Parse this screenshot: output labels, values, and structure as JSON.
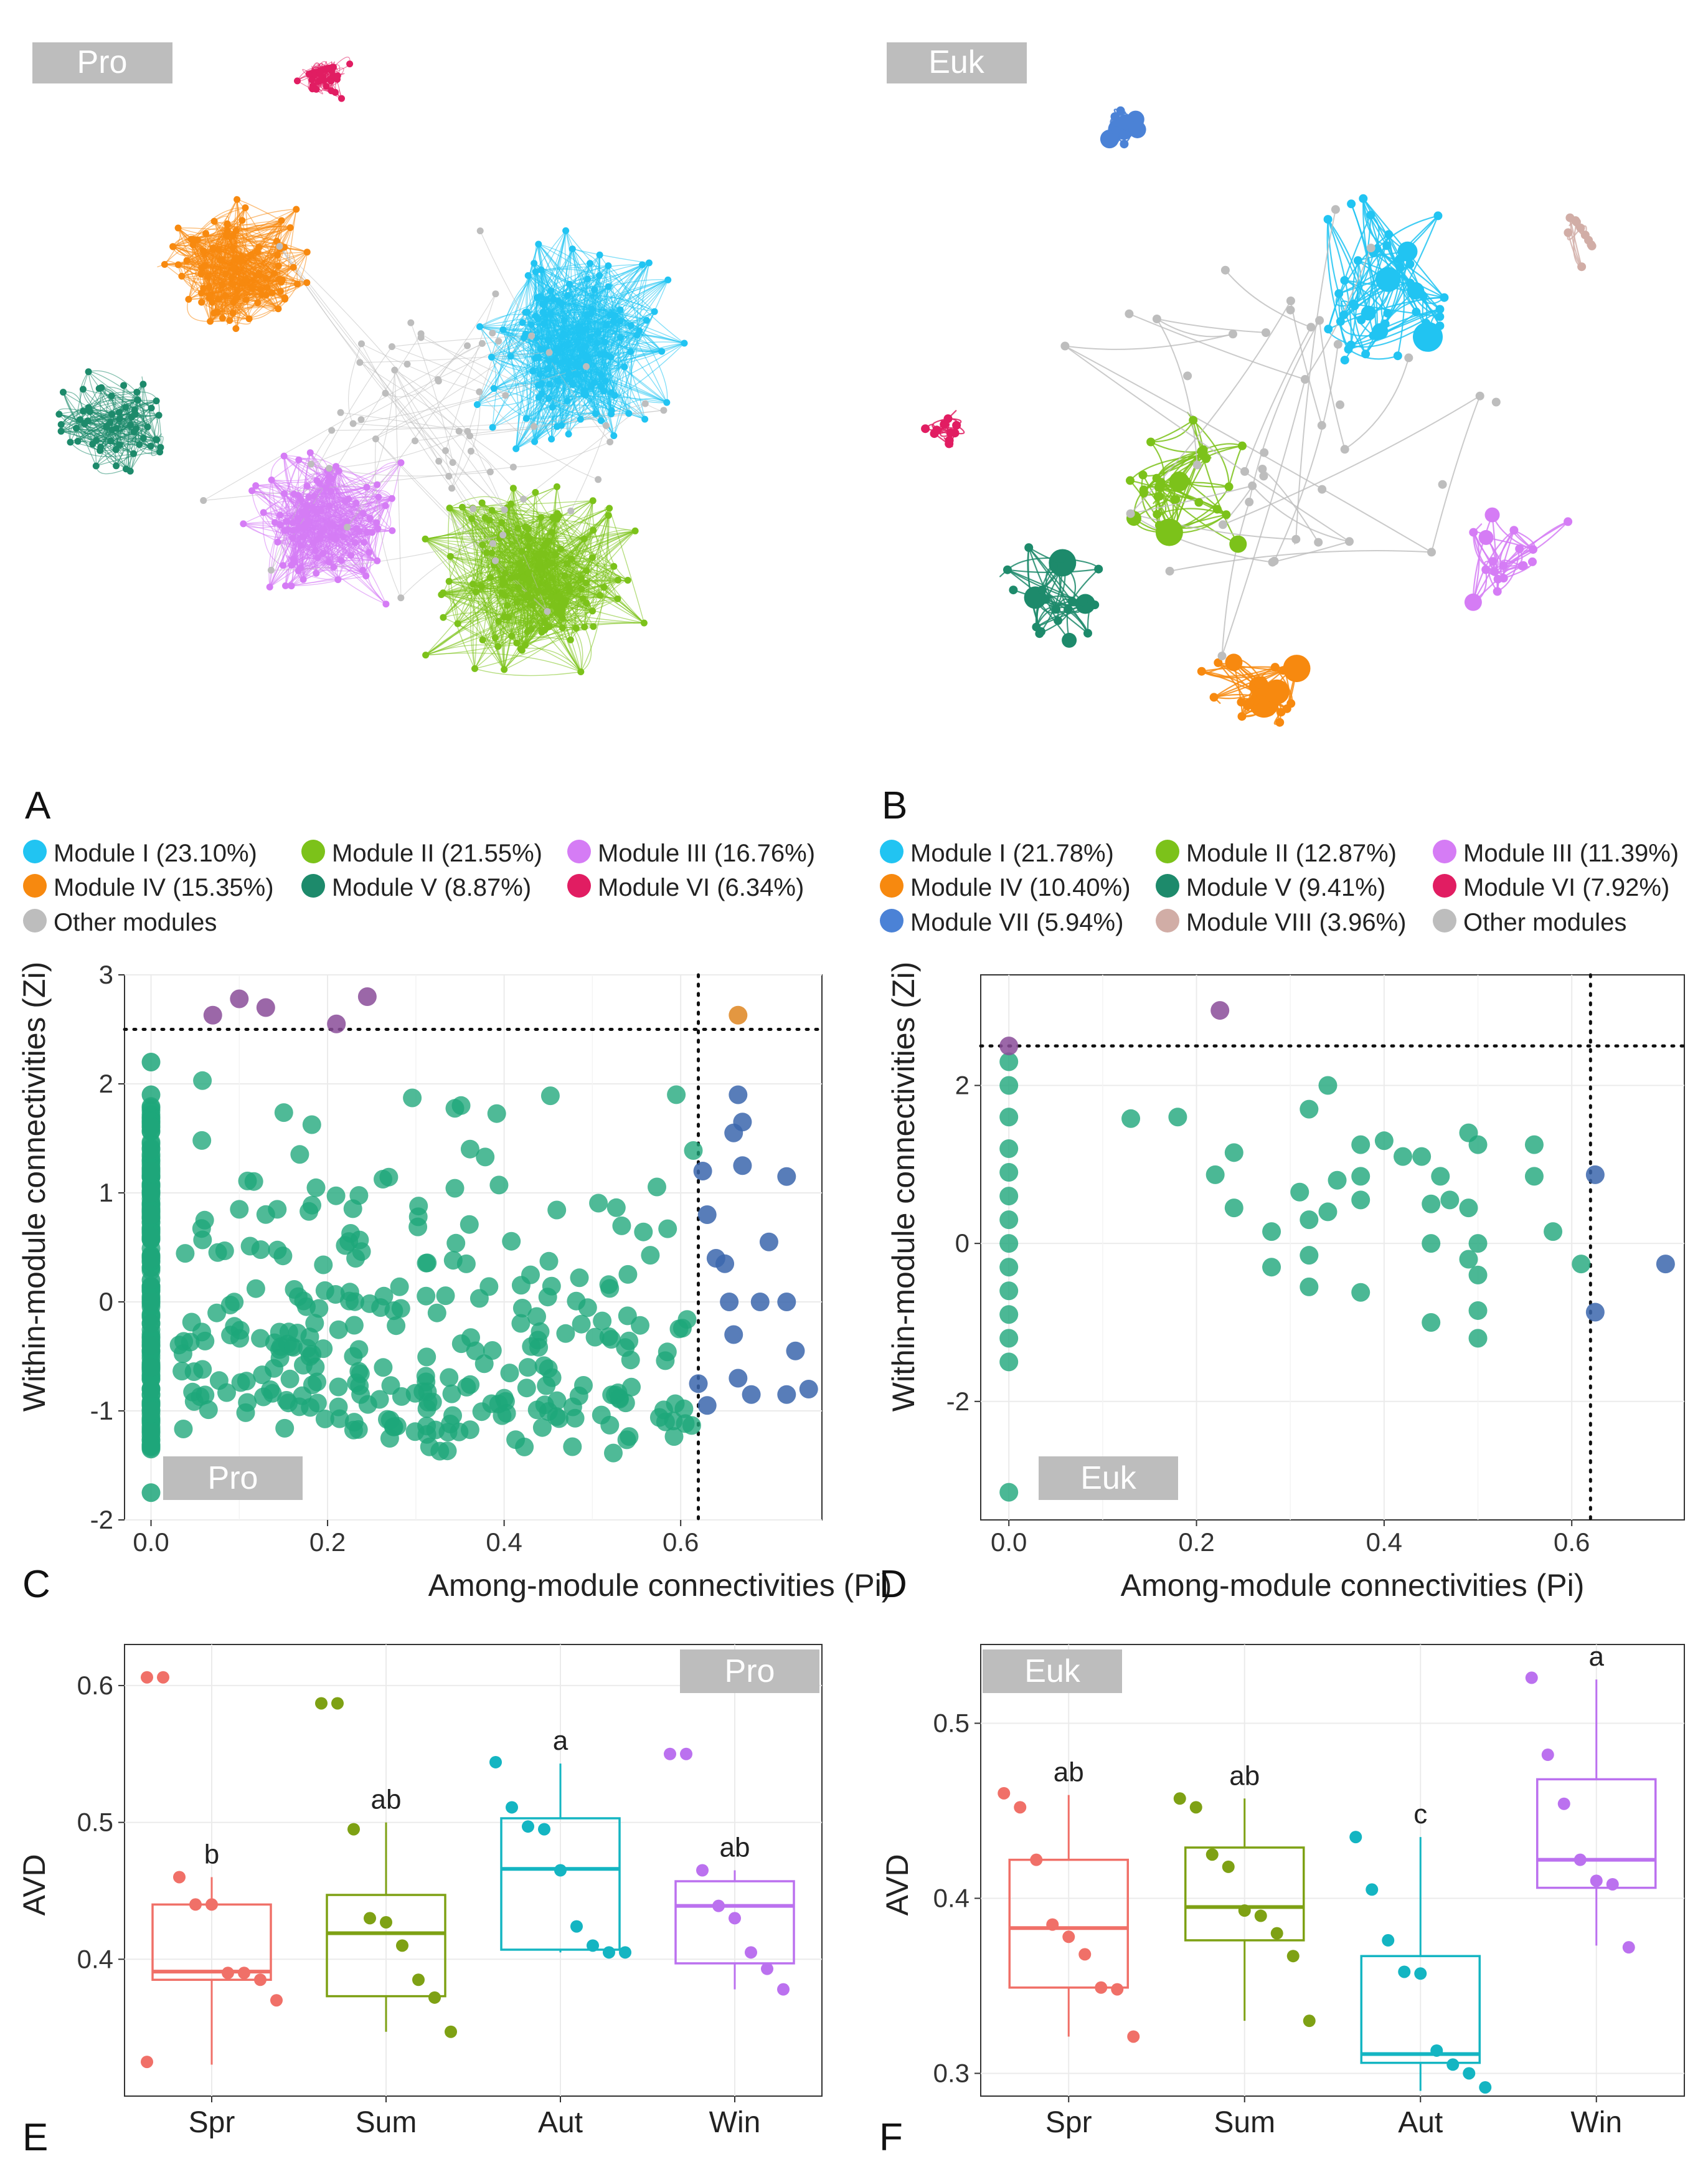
{
  "colors": {
    "module_I": "#21c4f2",
    "module_II": "#7cc21a",
    "module_III": "#d57cf5",
    "module_IV": "#f7890f",
    "module_V": "#1d8a6b",
    "module_VI": "#e11d62",
    "module_VII": "#4b82d6",
    "module_VIII": "#d1ada6",
    "other": "#bdbdbd",
    "zipi_peripheral": "#1ea67a",
    "zipi_connector": "#3b66ad",
    "zipi_module_hub": "#8a4c99",
    "zipi_network_hub": "#e08c2c",
    "spr": "#f07068",
    "sum": "#7ea114",
    "aut": "#14b5c2",
    "win": "#bb71ef",
    "tag_bg": "#bdbdbd",
    "grid": "#ebebeb"
  },
  "panels": {
    "A": {
      "letter": "A",
      "tag": "Pro"
    },
    "B": {
      "letter": "B",
      "tag": "Euk"
    },
    "C": {
      "letter": "C",
      "tag": "Pro"
    },
    "D": {
      "letter": "D",
      "tag": "Euk"
    },
    "E": {
      "letter": "E",
      "tag": "Pro"
    },
    "F": {
      "letter": "F",
      "tag": "Euk"
    }
  },
  "legend_A": [
    {
      "label": "Module I (23.10%)",
      "color": "#21c4f2"
    },
    {
      "label": "Module II (21.55%)",
      "color": "#7cc21a"
    },
    {
      "label": "Module III (16.76%)",
      "color": "#d57cf5"
    },
    {
      "label": "Module IV (15.35%)",
      "color": "#f7890f"
    },
    {
      "label": "Module V (8.87%)",
      "color": "#1d8a6b"
    },
    {
      "label": "Module VI (6.34%)",
      "color": "#e11d62"
    },
    {
      "label": "Other modules",
      "color": "#bdbdbd"
    }
  ],
  "legend_B": [
    {
      "label": "Module I (21.78%)",
      "color": "#21c4f2"
    },
    {
      "label": "Module II (12.87%)",
      "color": "#7cc21a"
    },
    {
      "label": "Module III (11.39%)",
      "color": "#d57cf5"
    },
    {
      "label": "Module IV (10.40%)",
      "color": "#f7890f"
    },
    {
      "label": "Module V (9.41%)",
      "color": "#1d8a6b"
    },
    {
      "label": "Module VI (7.92%)",
      "color": "#e11d62"
    },
    {
      "label": "Module VII (5.94%)",
      "color": "#4b82d6"
    },
    {
      "label": "Module VIII (3.96%)",
      "color": "#d1ada6"
    },
    {
      "label": "Other modules",
      "color": "#bdbdbd"
    }
  ],
  "chart_data": [
    {
      "panel": "C",
      "type": "scatter",
      "title": "Pro",
      "xlabel": "Among-module connectivities (Pi)",
      "ylabel": "Within-module connectivities (Zi)",
      "xlim": [
        -0.03,
        0.76
      ],
      "ylim": [
        -2,
        3
      ],
      "xticks": [
        0.0,
        0.2,
        0.4,
        0.6
      ],
      "yticks": [
        -2,
        -1,
        0,
        1,
        2,
        3
      ],
      "thresholds": {
        "pi": 0.62,
        "zi": 2.5
      },
      "points": {
        "module_hubs": [
          [
            0.07,
            2.63
          ],
          [
            0.1,
            2.78
          ],
          [
            0.13,
            2.7
          ],
          [
            0.21,
            2.55
          ],
          [
            0.245,
            2.8
          ]
        ],
        "network_hubs": [
          [
            0.665,
            2.63
          ]
        ],
        "connectors": [
          [
            0.625,
            1.2
          ],
          [
            0.63,
            0.8
          ],
          [
            0.64,
            0.4
          ],
          [
            0.655,
            0.0
          ],
          [
            0.66,
            1.55
          ],
          [
            0.665,
            1.9
          ],
          [
            0.67,
            1.65
          ],
          [
            0.67,
            1.25
          ],
          [
            0.65,
            0.35
          ],
          [
            0.66,
            -0.3
          ],
          [
            0.665,
            -0.7
          ],
          [
            0.68,
            -0.85
          ],
          [
            0.62,
            -0.75
          ],
          [
            0.63,
            -0.95
          ],
          [
            0.69,
            0.0
          ],
          [
            0.7,
            0.55
          ],
          [
            0.72,
            1.15
          ],
          [
            0.73,
            -0.45
          ],
          [
            0.72,
            0.0
          ],
          [
            0.72,
            -0.85
          ],
          [
            0.745,
            -0.8
          ]
        ],
        "peripherals_zero_pi": [
          -1.75,
          -1.35,
          -1.2,
          -1.0,
          -0.8,
          -0.6,
          -0.4,
          -0.2,
          0.0,
          0.2,
          0.4,
          0.6,
          0.8,
          1.0,
          1.2,
          1.4,
          1.6,
          1.9,
          2.2
        ],
        "peripherals_count": 420
      }
    },
    {
      "panel": "D",
      "type": "scatter",
      "title": "Euk",
      "xlabel": "Among-module connectivities (Pi)",
      "ylabel": "Within-module connectivities (Zi)",
      "xlim": [
        -0.03,
        0.72
      ],
      "ylim": [
        -3.5,
        3.4
      ],
      "xticks": [
        0.0,
        0.2,
        0.4,
        0.6
      ],
      "yticks": [
        -2,
        0,
        2
      ],
      "thresholds": {
        "pi": 0.62,
        "zi": 2.5
      },
      "points": {
        "module_hubs": [
          [
            0.0,
            2.5
          ],
          [
            0.225,
            2.95
          ]
        ],
        "connectors": [
          [
            0.625,
            0.87
          ],
          [
            0.625,
            -0.87
          ],
          [
            0.7,
            -0.26
          ]
        ],
        "peripherals": [
          [
            0.0,
            -3.15
          ],
          [
            0.0,
            -1.5
          ],
          [
            0.0,
            -1.2
          ],
          [
            0.0,
            -0.9
          ],
          [
            0.0,
            -0.6
          ],
          [
            0.0,
            -0.3
          ],
          [
            0.0,
            0.0
          ],
          [
            0.0,
            0.3
          ],
          [
            0.0,
            0.6
          ],
          [
            0.0,
            0.9
          ],
          [
            0.0,
            1.2
          ],
          [
            0.0,
            1.6
          ],
          [
            0.0,
            2.0
          ],
          [
            0.0,
            2.3
          ],
          [
            0.13,
            1.58
          ],
          [
            0.18,
            1.6
          ],
          [
            0.22,
            0.87
          ],
          [
            0.24,
            1.15
          ],
          [
            0.24,
            0.45
          ],
          [
            0.28,
            0.15
          ],
          [
            0.28,
            -0.3
          ],
          [
            0.31,
            0.65
          ],
          [
            0.32,
            1.7
          ],
          [
            0.32,
            0.3
          ],
          [
            0.32,
            -0.15
          ],
          [
            0.32,
            -0.55
          ],
          [
            0.34,
            2.0
          ],
          [
            0.34,
            0.4
          ],
          [
            0.35,
            0.8
          ],
          [
            0.375,
            1.25
          ],
          [
            0.375,
            0.85
          ],
          [
            0.375,
            0.55
          ],
          [
            0.375,
            -0.62
          ],
          [
            0.4,
            1.3
          ],
          [
            0.42,
            1.1
          ],
          [
            0.44,
            1.1
          ],
          [
            0.45,
            0.5
          ],
          [
            0.45,
            0.0
          ],
          [
            0.45,
            -1.0
          ],
          [
            0.46,
            0.85
          ],
          [
            0.47,
            0.55
          ],
          [
            0.49,
            1.4
          ],
          [
            0.49,
            0.45
          ],
          [
            0.49,
            -0.2
          ],
          [
            0.5,
            1.25
          ],
          [
            0.5,
            0.0
          ],
          [
            0.5,
            -0.4
          ],
          [
            0.5,
            -0.85
          ],
          [
            0.5,
            -1.2
          ],
          [
            0.56,
            1.25
          ],
          [
            0.56,
            0.85
          ],
          [
            0.58,
            0.15
          ],
          [
            0.61,
            -0.26
          ]
        ]
      }
    },
    {
      "panel": "E",
      "type": "box",
      "title": "Pro",
      "ylabel": "AVD",
      "ylim": [
        0.3,
        0.63
      ],
      "yticks": [
        0.4,
        0.5,
        0.6
      ],
      "categories": [
        "Spr",
        "Sum",
        "Aut",
        "Win"
      ],
      "boxes": [
        {
          "category": "Spr",
          "q1": 0.385,
          "median": 0.391,
          "q3": 0.44,
          "whisker_low": 0.323,
          "whisker_high": 0.46,
          "letter": "b",
          "points": [
            0.606,
            0.606,
            0.46,
            0.44,
            0.44,
            0.39,
            0.39,
            0.385,
            0.37,
            0.325
          ]
        },
        {
          "category": "Sum",
          "q1": 0.373,
          "median": 0.419,
          "q3": 0.447,
          "whisker_low": 0.347,
          "whisker_high": 0.5,
          "letter": "ab",
          "points": [
            0.587,
            0.587,
            0.495,
            0.43,
            0.427,
            0.41,
            0.385,
            0.372,
            0.347
          ]
        },
        {
          "category": "Aut",
          "q1": 0.407,
          "median": 0.466,
          "q3": 0.503,
          "whisker_low": 0.405,
          "whisker_high": 0.543,
          "letter": "a",
          "points": [
            0.544,
            0.511,
            0.497,
            0.495,
            0.465,
            0.424,
            0.41,
            0.405,
            0.405
          ]
        },
        {
          "category": "Win",
          "q1": 0.397,
          "median": 0.439,
          "q3": 0.457,
          "whisker_low": 0.378,
          "whisker_high": 0.465,
          "letter": "ab",
          "points": [
            0.55,
            0.55,
            0.465,
            0.439,
            0.43,
            0.405,
            0.393,
            0.378
          ]
        }
      ]
    },
    {
      "panel": "F",
      "type": "box",
      "title": "Euk",
      "ylabel": "AVD",
      "ylim": [
        0.287,
        0.545
      ],
      "yticks": [
        0.3,
        0.4,
        0.5
      ],
      "categories": [
        "Spr",
        "Sum",
        "Aut",
        "Win"
      ],
      "boxes": [
        {
          "category": "Spr",
          "q1": 0.349,
          "median": 0.383,
          "q3": 0.422,
          "whisker_low": 0.321,
          "whisker_high": 0.459,
          "letter": "ab",
          "points": [
            0.46,
            0.452,
            0.422,
            0.385,
            0.378,
            0.368,
            0.349,
            0.348,
            0.321
          ]
        },
        {
          "category": "Sum",
          "q1": 0.376,
          "median": 0.395,
          "q3": 0.429,
          "whisker_low": 0.33,
          "whisker_high": 0.457,
          "letter": "ab",
          "points": [
            0.457,
            0.452,
            0.425,
            0.418,
            0.393,
            0.39,
            0.38,
            0.367,
            0.33
          ]
        },
        {
          "category": "Aut",
          "q1": 0.306,
          "median": 0.311,
          "q3": 0.367,
          "whisker_low": 0.29,
          "whisker_high": 0.435,
          "letter": "c",
          "points": [
            0.435,
            0.405,
            0.376,
            0.358,
            0.357,
            0.313,
            0.305,
            0.3,
            0.292
          ]
        },
        {
          "category": "Win",
          "q1": 0.406,
          "median": 0.422,
          "q3": 0.468,
          "whisker_low": 0.373,
          "whisker_high": 0.525,
          "letter": "a",
          "points": [
            0.526,
            0.482,
            0.454,
            0.422,
            0.41,
            0.408,
            0.372
          ]
        }
      ]
    }
  ]
}
